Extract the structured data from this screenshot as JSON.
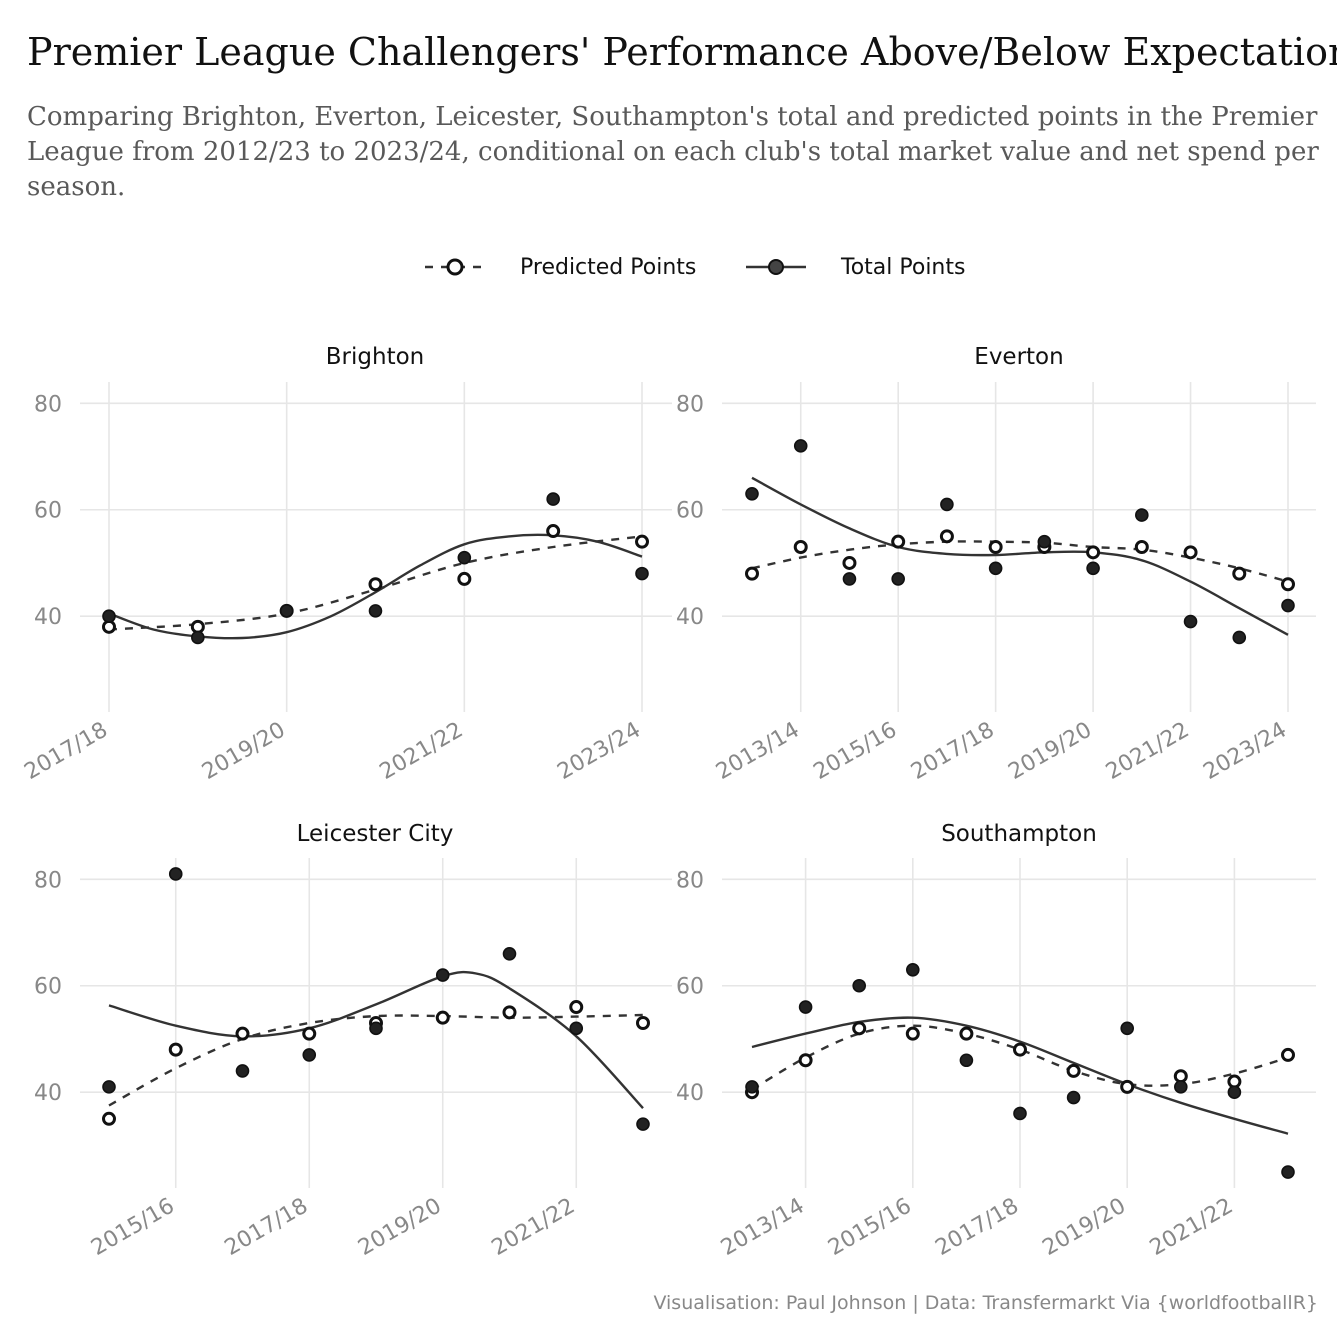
{
  "header": {
    "title": "Premier League Challengers' Performance Above/Below Expectations",
    "subtitle_lines": [
      "Comparing Brighton, Everton, Leicester, Southampton's total and predicted points in the Premier",
      "League from 2012/23 to 2023/24, conditional on each club's total market value and net spend per",
      "season."
    ]
  },
  "legend": {
    "items": [
      {
        "label": "Predicted Points",
        "style": "dashed-line-hollow-point"
      },
      {
        "label": "Total Points",
        "style": "solid-line-filled-point"
      }
    ],
    "position": "top-center"
  },
  "caption": "Visualisation: Paul Johnson | Data: Transfermarkt Via {worldfootballR}",
  "colors": {
    "line": "#333333",
    "point_filled": "#222222",
    "point_hollow_fill": "#ffffff",
    "grid": "#e6e6e6",
    "axis_text": "#888888"
  },
  "chart_data": [
    {
      "type": "scatter",
      "facet": "Brighton",
      "x_labels": [
        "2017/18",
        "2019/20",
        "2021/22",
        "2023/24"
      ],
      "x_start": 2017,
      "ylim": [
        22,
        84
      ],
      "y_ticks": [
        40,
        60,
        80
      ],
      "grid": true,
      "series": [
        {
          "name": "Predicted Points",
          "x": [
            2017,
            2018,
            2019,
            2020,
            2021,
            2022,
            2023
          ],
          "y": [
            38,
            38,
            41,
            46,
            47,
            56,
            54
          ],
          "trend": [
            [
              2017,
              37.5
            ],
            [
              2018,
              38.5
            ],
            [
              2019,
              40.5
            ],
            [
              2020,
              45
            ],
            [
              2021,
              50
            ],
            [
              2022,
              53
            ],
            [
              2023,
              55
            ]
          ]
        },
        {
          "name": "Total Points",
          "x": [
            2017,
            2018,
            2019,
            2020,
            2021,
            2022,
            2023
          ],
          "y": [
            40,
            36,
            41,
            41,
            51,
            62,
            48
          ],
          "trend": [
            [
              2017,
              40.5
            ],
            [
              2017.5,
              37.5
            ],
            [
              2018,
              36.2
            ],
            [
              2018.5,
              35.9
            ],
            [
              2019,
              37
            ],
            [
              2019.5,
              40
            ],
            [
              2020,
              44.5
            ],
            [
              2020.5,
              49.5
            ],
            [
              2021,
              53.5
            ],
            [
              2021.5,
              55
            ],
            [
              2022,
              55.2
            ],
            [
              2022.5,
              54
            ],
            [
              2023,
              51.2
            ]
          ]
        }
      ]
    },
    {
      "type": "scatter",
      "facet": "Everton",
      "x_labels": [
        "2013/14",
        "2015/16",
        "2017/18",
        "2019/20",
        "2021/22",
        "2023/24"
      ],
      "x_start": 2013,
      "ylim": [
        22,
        84
      ],
      "y_ticks": [
        40,
        60,
        80
      ],
      "grid": true,
      "series": [
        {
          "name": "Predicted Points",
          "x": [
            2012,
            2013,
            2014,
            2015,
            2016,
            2017,
            2018,
            2019,
            2020,
            2021,
            2022,
            2023
          ],
          "y": [
            48,
            53,
            50,
            54,
            55,
            53,
            53,
            52,
            53,
            52,
            48,
            46
          ],
          "trend": [
            [
              2012,
              49
            ],
            [
              2013,
              51
            ],
            [
              2014,
              52.5
            ],
            [
              2015,
              53.5
            ],
            [
              2016,
              54
            ],
            [
              2017,
              54
            ],
            [
              2018,
              53.8
            ],
            [
              2019,
              53
            ],
            [
              2020,
              52.5
            ],
            [
              2021,
              51
            ],
            [
              2022,
              49
            ],
            [
              2023,
              46.5
            ]
          ]
        },
        {
          "name": "Total Points",
          "x": [
            2012,
            2013,
            2014,
            2015,
            2016,
            2017,
            2018,
            2019,
            2020,
            2021,
            2022,
            2023
          ],
          "y": [
            63,
            72,
            47,
            47,
            61,
            49,
            54,
            49,
            59,
            39,
            36,
            42
          ],
          "trend": [
            [
              2012,
              66
            ],
            [
              2013,
              61
            ],
            [
              2014,
              56.5
            ],
            [
              2015,
              53
            ],
            [
              2016,
              51.7
            ],
            [
              2017,
              51.5
            ],
            [
              2018,
              52
            ],
            [
              2019,
              52
            ],
            [
              2020,
              50.5
            ],
            [
              2021,
              46.5
            ],
            [
              2022,
              41.5
            ],
            [
              2023,
              36.5
            ]
          ]
        }
      ]
    },
    {
      "type": "scatter",
      "facet": "Leicester City",
      "x_labels": [
        "2015/16",
        "2017/18",
        "2019/20",
        "2021/22"
      ],
      "x_start": 2015,
      "ylim": [
        22,
        84
      ],
      "y_ticks": [
        40,
        60,
        80
      ],
      "grid": true,
      "series": [
        {
          "name": "Predicted Points",
          "x": [
            2014,
            2015,
            2016,
            2017,
            2018,
            2019,
            2020,
            2021,
            2022
          ],
          "y": [
            35,
            48,
            51,
            51,
            53,
            54,
            55,
            56,
            53
          ],
          "trend": [
            [
              2014,
              37.5
            ],
            [
              2015,
              44.5
            ],
            [
              2016,
              50
            ],
            [
              2017,
              53
            ],
            [
              2018,
              54.3
            ],
            [
              2019,
              54.3
            ],
            [
              2020,
              54
            ],
            [
              2021,
              54.2
            ],
            [
              2022,
              54.5
            ]
          ]
        },
        {
          "name": "Total Points",
          "x": [
            2014,
            2015,
            2016,
            2017,
            2018,
            2019,
            2020,
            2021,
            2022
          ],
          "y": [
            41,
            81,
            44,
            47,
            52,
            62,
            66,
            52,
            34
          ],
          "trend": [
            [
              2014,
              56.3
            ],
            [
              2015,
              52.5
            ],
            [
              2016,
              50.5
            ],
            [
              2017,
              52
            ],
            [
              2018,
              56.5
            ],
            [
              2019,
              61.8
            ],
            [
              2019.5,
              62.3
            ],
            [
              2020,
              59.5
            ],
            [
              2021,
              50.5
            ],
            [
              2022,
              37
            ]
          ]
        }
      ]
    },
    {
      "type": "scatter",
      "facet": "Southampton",
      "x_labels": [
        "2013/14",
        "2015/16",
        "2017/18",
        "2019/20",
        "2021/22"
      ],
      "x_start": 2013,
      "ylim": [
        22,
        84
      ],
      "y_ticks": [
        40,
        60,
        80
      ],
      "grid": true,
      "series": [
        {
          "name": "Predicted Points",
          "x": [
            2012,
            2013,
            2014,
            2015,
            2016,
            2017,
            2018,
            2019,
            2020,
            2021,
            2022
          ],
          "y": [
            40,
            46,
            52,
            51,
            51,
            48,
            44,
            41,
            43,
            42,
            47
          ],
          "trend": [
            [
              2012,
              40.5
            ],
            [
              2013,
              46.5
            ],
            [
              2014,
              51
            ],
            [
              2015,
              52.5
            ],
            [
              2016,
              51
            ],
            [
              2017,
              48
            ],
            [
              2018,
              44
            ],
            [
              2019,
              41.5
            ],
            [
              2020,
              41.5
            ],
            [
              2021,
              43.5
            ],
            [
              2022,
              46.5
            ]
          ]
        },
        {
          "name": "Total Points",
          "x": [
            2012,
            2013,
            2014,
            2015,
            2016,
            2017,
            2018,
            2019,
            2020,
            2021,
            2022
          ],
          "y": [
            41,
            56,
            60,
            63,
            46,
            36,
            39,
            52,
            41,
            40,
            25
          ],
          "trend": [
            [
              2012,
              48.5
            ],
            [
              2013,
              51
            ],
            [
              2014,
              53.2
            ],
            [
              2015,
              54
            ],
            [
              2016,
              52.5
            ],
            [
              2017,
              49.5
            ],
            [
              2018,
              45.5
            ],
            [
              2019,
              41.5
            ],
            [
              2020,
              38
            ],
            [
              2021,
              35
            ],
            [
              2022,
              32.2
            ]
          ]
        }
      ]
    }
  ]
}
